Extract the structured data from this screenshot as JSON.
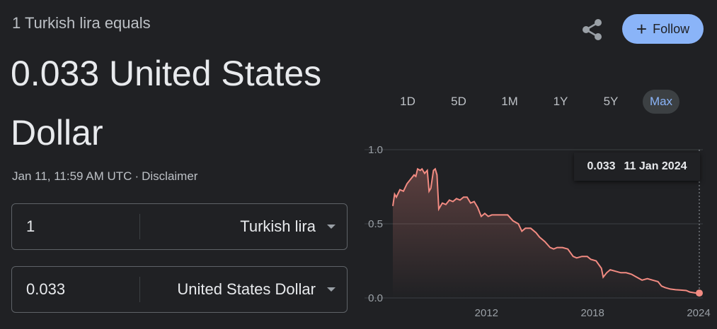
{
  "header": {
    "subtitle": "1 Turkish lira equals",
    "value_line1": "0.033 United States",
    "value_line2": "Dollar",
    "timestamp": "Jan 11, 11:59 AM UTC",
    "separator": "·",
    "disclaimer": "Disclaimer"
  },
  "actions": {
    "share_icon": "share-icon",
    "follow_label": "Follow",
    "follow_color": "#8ab4f8"
  },
  "converter": {
    "from": {
      "amount": "1",
      "currency": "Turkish lira"
    },
    "to": {
      "amount": "0.033",
      "currency": "United States Dollar"
    }
  },
  "ranges": {
    "items": [
      "1D",
      "5D",
      "1M",
      "1Y",
      "5Y",
      "Max"
    ],
    "active": "Max"
  },
  "tooltip": {
    "value": "0.033",
    "date": "11 Jan 2024"
  },
  "chart_data": {
    "type": "area",
    "line_color": "#f28b82",
    "ylim": [
      0.0,
      1.0
    ],
    "y_ticks": [
      "1.0",
      "0.5",
      "0.0"
    ],
    "x_ticks": [
      "2012",
      "2018",
      "2024"
    ],
    "xlim": [
      2006.7,
      2024.04
    ],
    "series": [
      {
        "points": [
          [
            2006.7,
            0.62
          ],
          [
            2006.8,
            0.7
          ],
          [
            2006.9,
            0.68
          ],
          [
            2007.1,
            0.73
          ],
          [
            2007.3,
            0.72
          ],
          [
            2007.5,
            0.77
          ],
          [
            2007.7,
            0.8
          ],
          [
            2007.9,
            0.83
          ],
          [
            2008.0,
            0.82
          ],
          [
            2008.1,
            0.87
          ],
          [
            2008.25,
            0.86
          ],
          [
            2008.35,
            0.87
          ],
          [
            2008.5,
            0.84
          ],
          [
            2008.65,
            0.86
          ],
          [
            2008.75,
            0.72
          ],
          [
            2008.85,
            0.74
          ],
          [
            2009.0,
            0.86
          ],
          [
            2009.1,
            0.87
          ],
          [
            2009.2,
            0.83
          ],
          [
            2009.3,
            0.6
          ],
          [
            2009.5,
            0.64
          ],
          [
            2009.7,
            0.63
          ],
          [
            2009.9,
            0.66
          ],
          [
            2010.1,
            0.65
          ],
          [
            2010.3,
            0.67
          ],
          [
            2010.5,
            0.66
          ],
          [
            2010.7,
            0.68
          ],
          [
            2010.9,
            0.68
          ],
          [
            2011.1,
            0.64
          ],
          [
            2011.3,
            0.65
          ],
          [
            2011.5,
            0.61
          ],
          [
            2011.7,
            0.55
          ],
          [
            2011.9,
            0.57
          ],
          [
            2012.1,
            0.55
          ],
          [
            2012.3,
            0.56
          ],
          [
            2012.6,
            0.56
          ],
          [
            2012.9,
            0.56
          ],
          [
            2013.2,
            0.56
          ],
          [
            2013.5,
            0.52
          ],
          [
            2013.8,
            0.5
          ],
          [
            2014.0,
            0.45
          ],
          [
            2014.2,
            0.47
          ],
          [
            2014.5,
            0.47
          ],
          [
            2014.8,
            0.44
          ],
          [
            2015.0,
            0.41
          ],
          [
            2015.3,
            0.38
          ],
          [
            2015.6,
            0.34
          ],
          [
            2015.8,
            0.33
          ],
          [
            2016.0,
            0.34
          ],
          [
            2016.3,
            0.34
          ],
          [
            2016.6,
            0.33
          ],
          [
            2016.9,
            0.28
          ],
          [
            2017.1,
            0.27
          ],
          [
            2017.4,
            0.28
          ],
          [
            2017.7,
            0.28
          ],
          [
            2017.9,
            0.26
          ],
          [
            2018.2,
            0.25
          ],
          [
            2018.5,
            0.2
          ],
          [
            2018.6,
            0.14
          ],
          [
            2018.8,
            0.17
          ],
          [
            2019.0,
            0.19
          ],
          [
            2019.3,
            0.18
          ],
          [
            2019.6,
            0.17
          ],
          [
            2019.9,
            0.17
          ],
          [
            2020.2,
            0.16
          ],
          [
            2020.5,
            0.14
          ],
          [
            2020.8,
            0.12
          ],
          [
            2021.1,
            0.13
          ],
          [
            2021.4,
            0.12
          ],
          [
            2021.7,
            0.11
          ],
          [
            2021.9,
            0.08
          ],
          [
            2022.1,
            0.07
          ],
          [
            2022.4,
            0.06
          ],
          [
            2022.7,
            0.055
          ],
          [
            2023.0,
            0.053
          ],
          [
            2023.3,
            0.05
          ],
          [
            2023.5,
            0.04
          ],
          [
            2023.8,
            0.034
          ],
          [
            2024.04,
            0.033
          ]
        ]
      }
    ]
  }
}
